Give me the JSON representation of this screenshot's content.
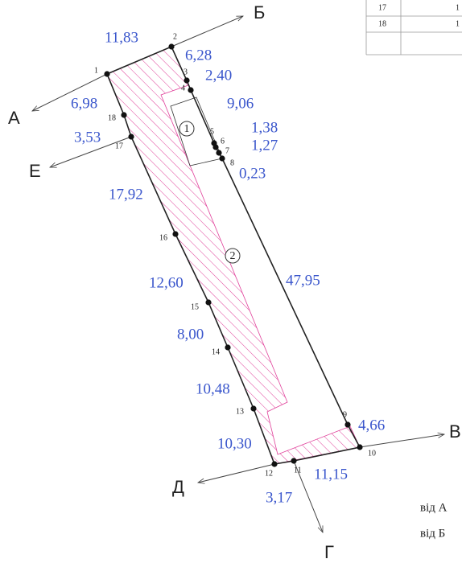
{
  "points": [
    "1",
    "2",
    "3",
    "4",
    "5",
    "6",
    "7",
    "8",
    "9",
    "10",
    "11",
    "12",
    "13",
    "14",
    "15",
    "16",
    "17",
    "18"
  ],
  "lengths": [
    "11,83",
    "6,28",
    "2,40",
    "6,98",
    "9,06",
    "3,53",
    "1,38",
    "1,27",
    "0,23",
    "17,92",
    "12,60",
    "47,95",
    "8,00",
    "10,48",
    "4,66",
    "10,30",
    "11,15",
    "3,17"
  ],
  "directions": [
    "А",
    "Б",
    "Е",
    "В",
    "Д",
    "Г"
  ],
  "parcels": [
    "1",
    "2"
  ],
  "table": {
    "rows": [
      [
        "17",
        "1"
      ],
      [
        "18",
        "1"
      ]
    ]
  },
  "notes": [
    "від А",
    "від Б"
  ]
}
